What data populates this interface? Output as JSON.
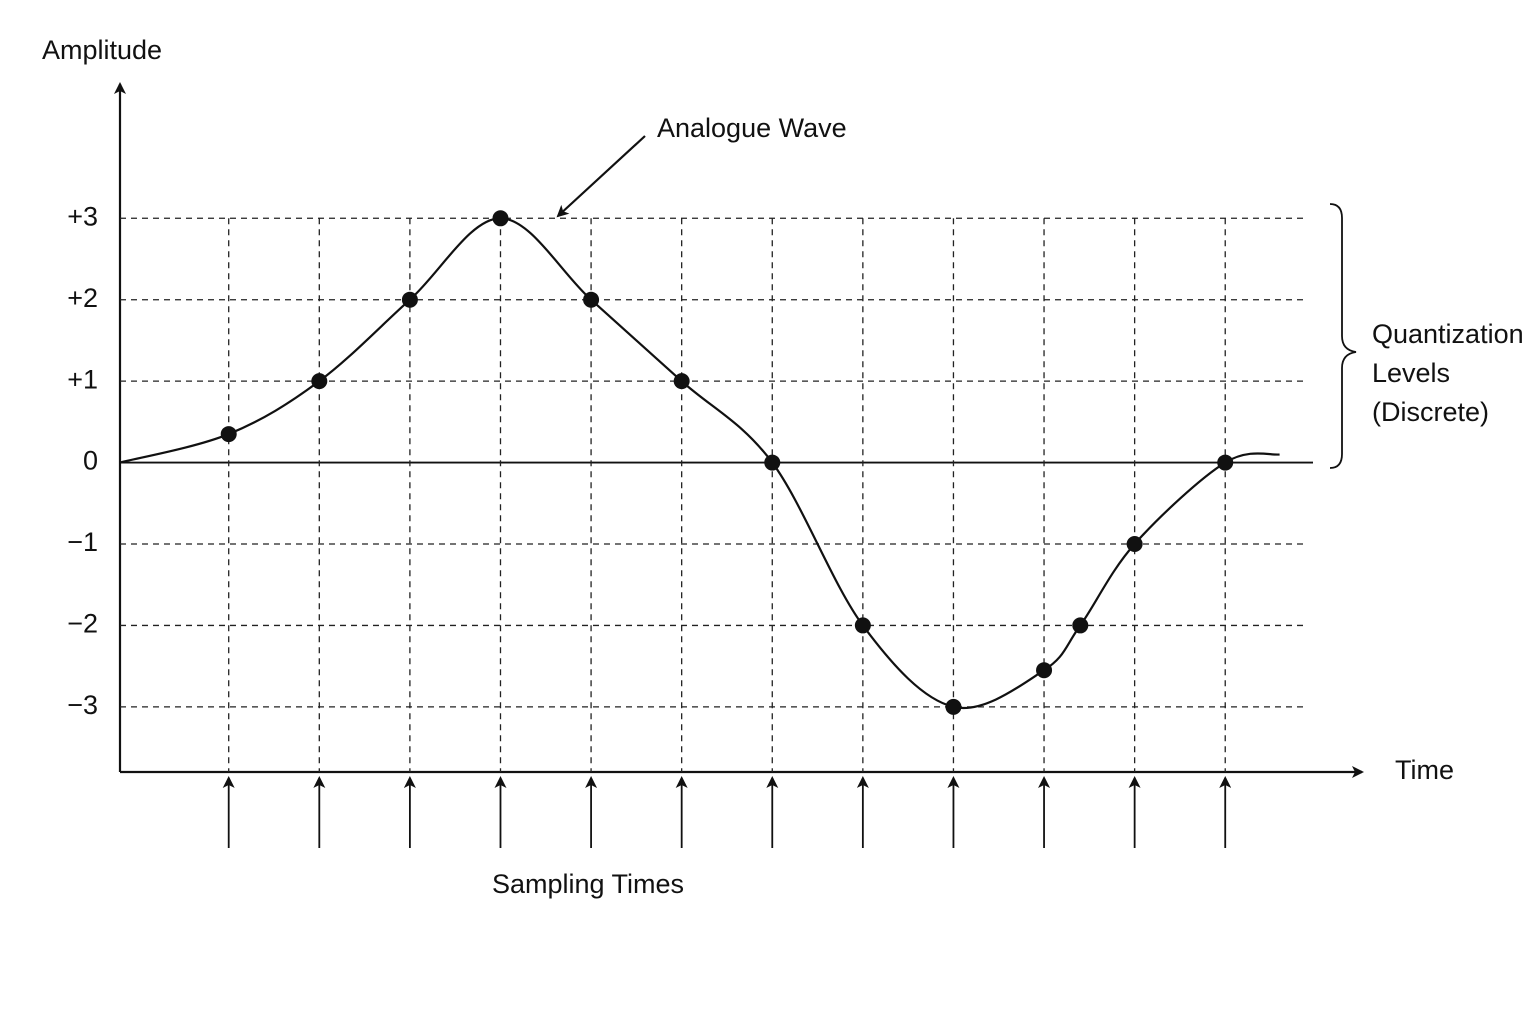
{
  "chart_data": {
    "type": "line",
    "title": "Analogue Wave",
    "y_label": "Amplitude",
    "x_label": "Time",
    "sampling_label": "Sampling Times",
    "bracket_label": [
      "Quantization",
      "Levels",
      "(Discrete)"
    ],
    "sampling_times": [
      1,
      2,
      3,
      4,
      5,
      6,
      7,
      8,
      9,
      10,
      11,
      12
    ],
    "x": [
      1,
      2,
      3,
      4,
      5,
      6,
      7,
      8,
      9,
      10,
      10.4,
      11,
      12
    ],
    "values": [
      0.35,
      1,
      2,
      3,
      2,
      1,
      0,
      -2,
      -3,
      -2.55,
      -2,
      -1,
      0
    ],
    "curve": {
      "x": [
        -0.2,
        1,
        2,
        3,
        4,
        5,
        6,
        7,
        8,
        9,
        10,
        10.4,
        11,
        12,
        12.6
      ],
      "values": [
        0,
        0.35,
        1,
        2,
        3,
        2,
        1,
        0,
        -2,
        -3,
        -2.55,
        -2,
        -1,
        0,
        0.1
      ]
    },
    "color": "#111111",
    "xlim": [
      -0.2,
      13.3
    ],
    "ylim": [
      -3.8,
      4.6
    ],
    "yticks": [
      {
        "value": 3,
        "label": "+3"
      },
      {
        "value": 2,
        "label": "+2"
      },
      {
        "value": 1,
        "label": "+1"
      },
      0,
      {
        "value": -1,
        "label": "−1"
      },
      {
        "value": -2,
        "label": "−2"
      },
      {
        "value": -3,
        "label": "−3"
      }
    ],
    "grid": true
  }
}
